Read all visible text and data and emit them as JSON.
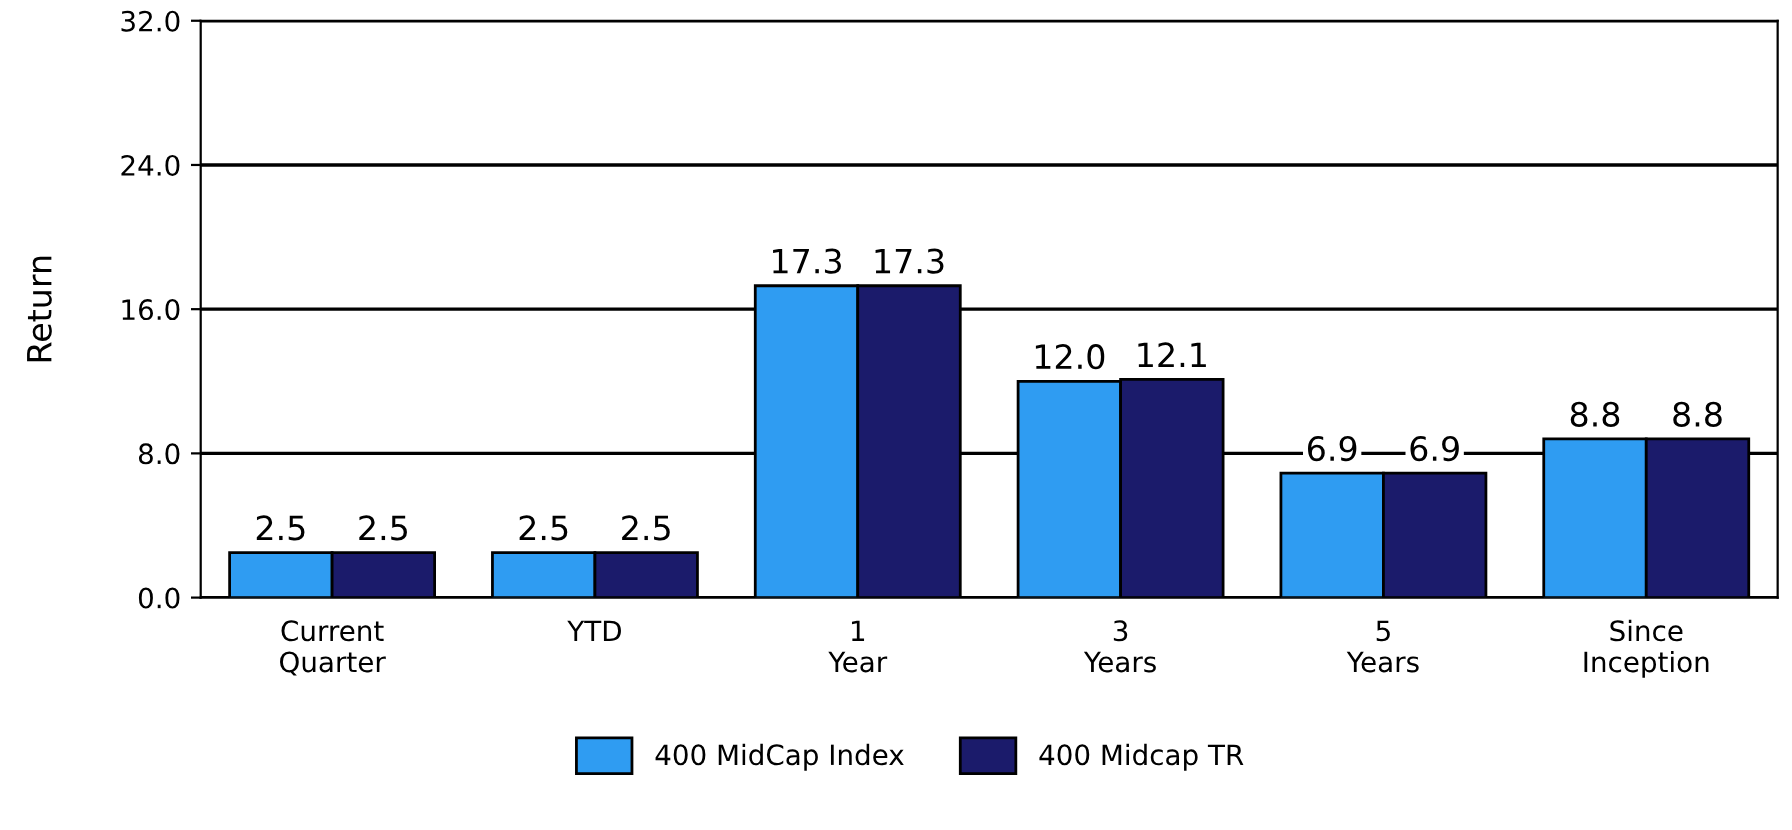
{
  "chart_data": {
    "type": "bar",
    "ylabel": "Return",
    "categories": [
      "Current\nQuarter",
      "YTD",
      "1\nYear",
      "3\nYears",
      "5\nYears",
      "Since\nInception"
    ],
    "series": [
      {
        "name": "400 MidCap Index",
        "color": "#2f9cf2",
        "values": [
          2.5,
          2.5,
          17.3,
          12.0,
          6.9,
          8.8
        ],
        "value_labels": [
          "2.5",
          "2.5",
          "17.3",
          "12.0",
          "6.9",
          "8.8"
        ]
      },
      {
        "name": "400 Midcap TR",
        "color": "#1b1b6b",
        "values": [
          2.5,
          2.5,
          17.3,
          12.1,
          6.9,
          8.8
        ],
        "value_labels": [
          "2.5",
          "2.5",
          "17.3",
          "12.1",
          "6.9",
          "8.8"
        ]
      }
    ],
    "ylim": [
      0,
      32
    ],
    "yticks": [
      {
        "value": 0,
        "label": "0.0"
      },
      {
        "value": 8,
        "label": "8.0"
      },
      {
        "value": 16,
        "label": "16.0"
      },
      {
        "value": 24,
        "label": "24.0"
      },
      {
        "value": 32,
        "label": "32.0"
      }
    ],
    "grid": "y",
    "legend": "bottom"
  }
}
